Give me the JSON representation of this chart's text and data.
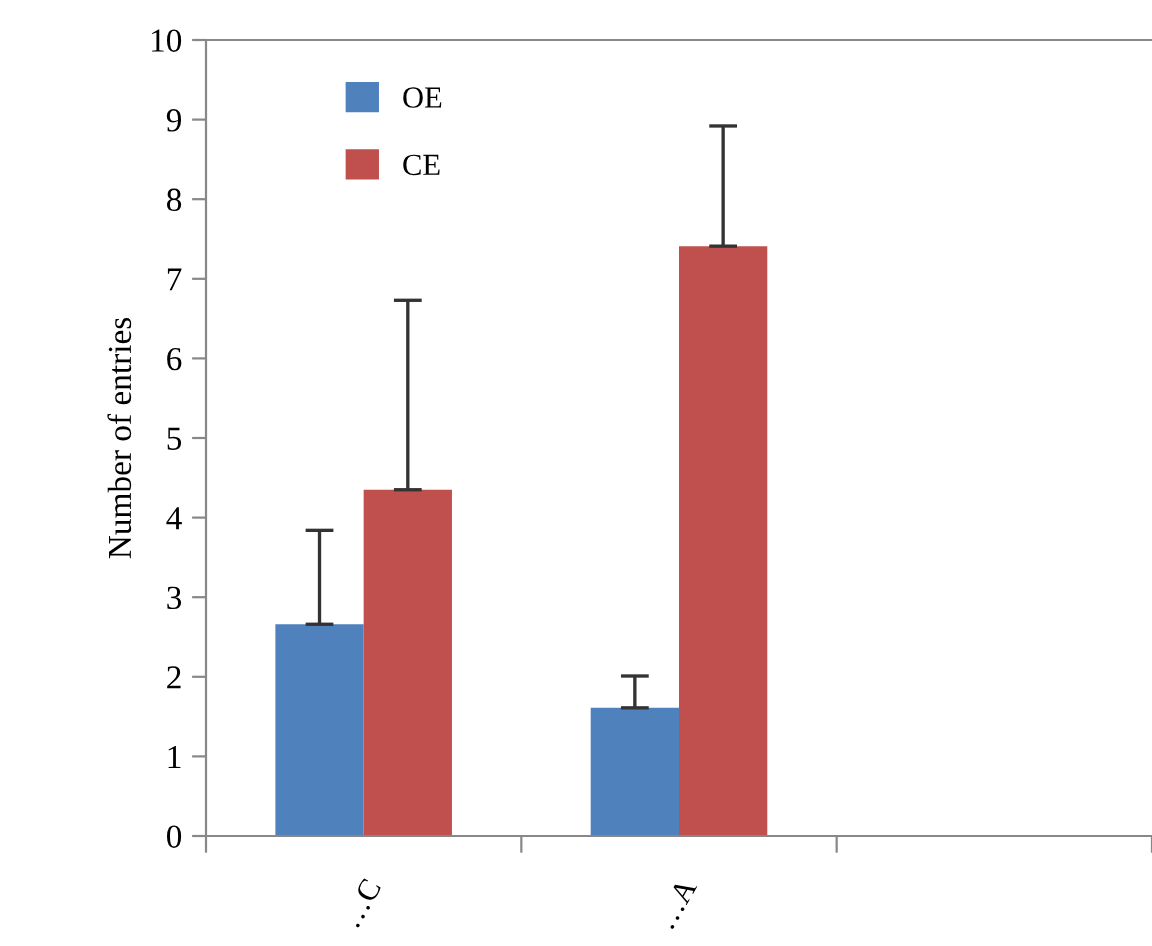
{
  "chart_data": {
    "type": "bar",
    "ylabel": "Number of entries",
    "categories": [
      "…C",
      "…A",
      null
    ],
    "series": [
      {
        "name": "OE",
        "color": "#4f81bd",
        "values": [
          2.66,
          1.61,
          null
        ],
        "errors": [
          [
            2.66,
            3.84
          ],
          [
            1.61,
            2.01
          ],
          null
        ]
      },
      {
        "name": "CE",
        "color": "#c0504d",
        "values": [
          4.35,
          7.41,
          null
        ],
        "errors": [
          [
            4.35,
            6.73
          ],
          [
            7.41,
            8.92
          ],
          null
        ]
      }
    ],
    "ylim": [
      0,
      10
    ],
    "yticks": [
      0,
      1,
      2,
      3,
      4,
      5,
      6,
      7,
      8,
      9,
      10
    ],
    "grid": false,
    "legend": "top left"
  }
}
